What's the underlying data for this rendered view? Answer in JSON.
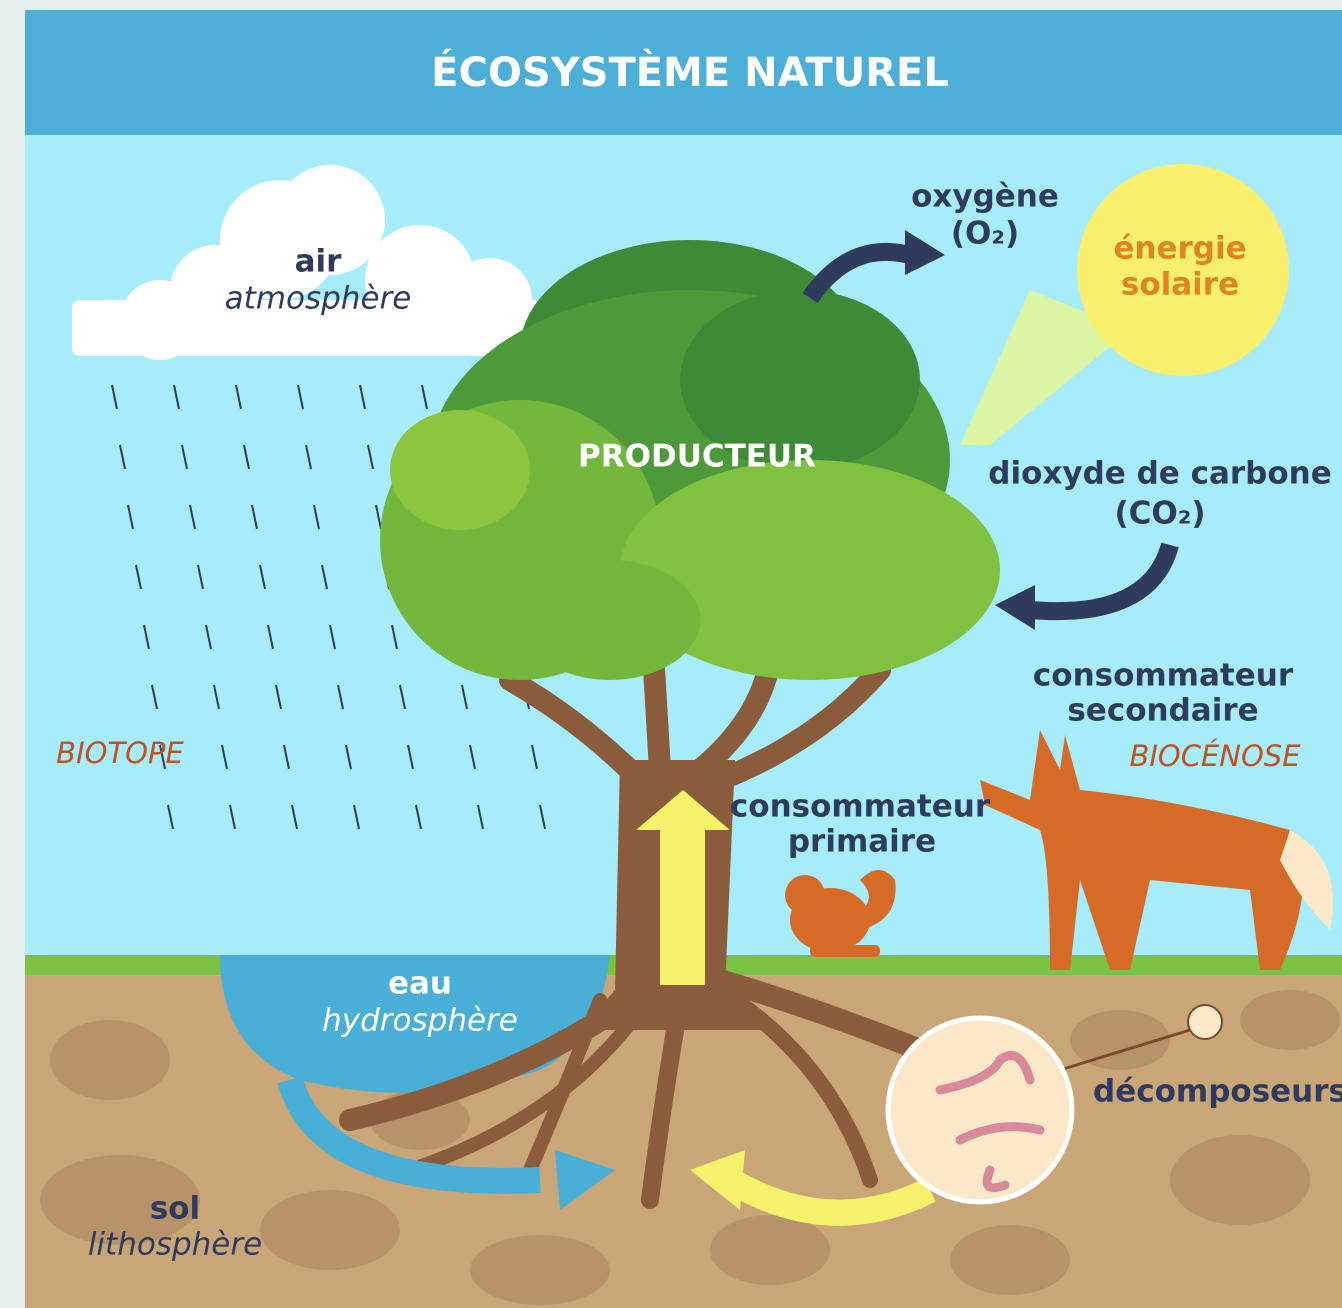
{
  "header": {
    "title": "ÉCOSYSTÈME NATUREL"
  },
  "labels": {
    "air": {
      "name": "air",
      "sub": "atmosphère"
    },
    "oxygen": {
      "lines": [
        "oxygène",
        "(O₂)"
      ]
    },
    "sun": {
      "lines": [
        "énergie",
        "solaire"
      ]
    },
    "producer": "PRODUCTEUR",
    "co2": {
      "lines": [
        "dioxyde de carbone",
        "(CO₂)"
      ]
    },
    "secondary": {
      "lines": [
        "consommateur",
        "secondaire"
      ]
    },
    "biocenose": "BIOCÉNOSE",
    "biotope": "BIOTOPE",
    "primary": {
      "lines": [
        "consommateur",
        "primaire"
      ]
    },
    "water": {
      "name": "eau",
      "sub": "hydrosphère"
    },
    "decomposers": "décomposeurs",
    "soil": {
      "name": "sol",
      "sub": "lithosphère"
    }
  }
}
